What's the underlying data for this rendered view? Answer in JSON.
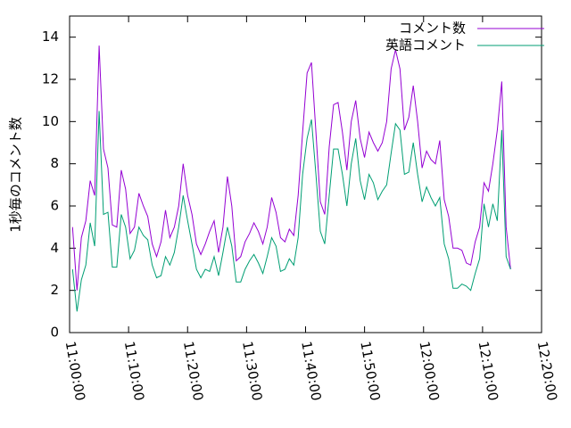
{
  "chart_data": {
    "type": "line",
    "y_label": "1秒毎のコメント数",
    "x": [
      "11:00:30",
      "11:01:15",
      "11:02:00",
      "11:02:45",
      "11:03:30",
      "11:04:15",
      "11:05:00",
      "11:05:45",
      "11:06:30",
      "11:07:15",
      "11:08:00",
      "11:08:45",
      "11:09:30",
      "11:10:15",
      "11:11:00",
      "11:11:45",
      "11:12:30",
      "11:13:15",
      "11:14:00",
      "11:14:45",
      "11:15:30",
      "11:16:15",
      "11:17:00",
      "11:17:45",
      "11:18:30",
      "11:19:15",
      "11:20:00",
      "11:20:45",
      "11:21:30",
      "11:22:15",
      "11:23:00",
      "11:23:45",
      "11:24:30",
      "11:25:15",
      "11:26:00",
      "11:26:45",
      "11:27:30",
      "11:28:15",
      "11:29:00",
      "11:29:45",
      "11:30:30",
      "11:31:15",
      "11:32:00",
      "11:32:45",
      "11:33:30",
      "11:34:15",
      "11:35:00",
      "11:35:45",
      "11:36:30",
      "11:37:15",
      "11:38:00",
      "11:38:45",
      "11:39:30",
      "11:40:15",
      "11:41:00",
      "11:41:45",
      "11:42:30",
      "11:43:15",
      "11:44:00",
      "11:44:45",
      "11:45:30",
      "11:46:15",
      "11:47:00",
      "11:47:45",
      "11:48:30",
      "11:49:15",
      "11:50:00",
      "11:50:45",
      "11:51:30",
      "11:52:15",
      "11:53:00",
      "11:53:45",
      "11:54:30",
      "11:55:15",
      "11:56:00",
      "11:56:45",
      "11:57:30",
      "11:58:15",
      "11:59:00",
      "11:59:45",
      "12:00:30",
      "12:01:15",
      "12:02:00",
      "12:02:45",
      "12:03:30",
      "12:04:15",
      "12:05:00",
      "12:05:45",
      "12:06:30",
      "12:07:15",
      "12:08:00",
      "12:08:45",
      "12:09:30",
      "12:10:15",
      "12:11:00",
      "12:11:45",
      "12:12:30",
      "12:13:15",
      "12:14:00",
      "12:14:45"
    ],
    "series": [
      {
        "name": "コメント数",
        "color": "#9400d3",
        "values": [
          5,
          2,
          4.5,
          5.3,
          7.2,
          6.5,
          13.6,
          8.7,
          7.8,
          5.1,
          5,
          7.7,
          6.8,
          4.7,
          5,
          6.6,
          6,
          5.5,
          4.2,
          3.6,
          4.3,
          5.8,
          4.5,
          5,
          6,
          8,
          6.5,
          5.6,
          4.2,
          3.7,
          4.2,
          4.8,
          5.3,
          3.8,
          5,
          7.4,
          6,
          3.4,
          3.6,
          4.3,
          4.7,
          5.2,
          4.8,
          4.2,
          5,
          6.4,
          5.7,
          4.5,
          4.3,
          4.9,
          4.6,
          6.5,
          9.5,
          12.3,
          12.8,
          9.5,
          6.2,
          5.6,
          8.8,
          10.8,
          10.9,
          9.5,
          7.7,
          10,
          11,
          9.2,
          8.3,
          9.5,
          9,
          8.6,
          9,
          10,
          12.5,
          13.4,
          12.5,
          9.6,
          10.2,
          11.7,
          10,
          7.8,
          8.6,
          8.2,
          8,
          9.1,
          6.3,
          5.5,
          4,
          4,
          3.9,
          3.3,
          3.2,
          4.3,
          5,
          7.1,
          6.7,
          8,
          9.6,
          11.9,
          5,
          3
        ]
      },
      {
        "name": "英語コメント",
        "color": "#009e73",
        "values": [
          3,
          1,
          2.5,
          3.2,
          5.2,
          4.1,
          10.5,
          5.6,
          5.7,
          3.1,
          3.1,
          5.6,
          5,
          3.5,
          3.9,
          5,
          4.6,
          4.4,
          3.2,
          2.6,
          2.7,
          3.6,
          3.2,
          3.8,
          5,
          6.5,
          5.3,
          4.2,
          3,
          2.6,
          3,
          2.9,
          3.6,
          2.7,
          3.8,
          5,
          4.1,
          2.4,
          2.4,
          3,
          3.4,
          3.7,
          3.3,
          2.8,
          3.6,
          4.5,
          4.1,
          2.9,
          3,
          3.5,
          3.2,
          4.5,
          7.5,
          9.2,
          10.1,
          7.5,
          4.8,
          4.2,
          6.5,
          8.7,
          8.7,
          7.5,
          6,
          8,
          9.2,
          7.2,
          6.3,
          7.5,
          7.1,
          6.3,
          6.7,
          7,
          8.5,
          9.9,
          9.6,
          7.5,
          7.6,
          9,
          7.5,
          6.2,
          6.9,
          6.4,
          6,
          6.4,
          4.2,
          3.5,
          2.1,
          2.1,
          2.3,
          2.2,
          2,
          2.8,
          3.5,
          6.1,
          5,
          6.1,
          5.3,
          9.6,
          3.6,
          3
        ]
      }
    ],
    "xlim": [
      "11:00:00",
      "12:20:00"
    ],
    "xticks": [
      "11:00:00",
      "11:10:00",
      "11:20:00",
      "11:30:00",
      "11:40:00",
      "11:50:00",
      "12:00:00",
      "12:10:00",
      "12:20:00"
    ],
    "ylim": [
      0,
      15
    ],
    "yticks": [
      0,
      2,
      4,
      6,
      8,
      10,
      12,
      14
    ],
    "legend": "top-right"
  }
}
